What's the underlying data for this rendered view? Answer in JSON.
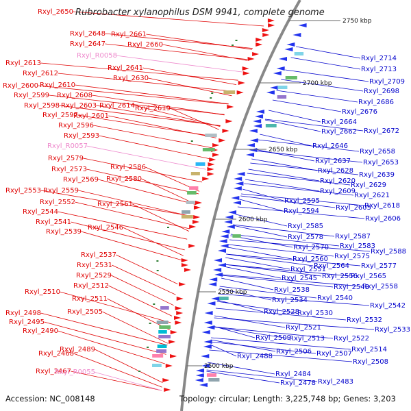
{
  "title": "Rubrobacter xylanophilus DSM 9941, complete genome",
  "accession": "Accession: NC_008148",
  "topology": "Topology: circular; Length: 3,225,748 bp; Genes: 3,203",
  "scale_labels": [
    "2750 kbp",
    "2700 kbp",
    "2650 kbp",
    "2600 kbp",
    "2550 kbp",
    "2500 kbp"
  ],
  "left_labels": [
    {
      "text": "Rxyl_2650",
      "type": "gene"
    },
    {
      "text": "Rxyl_2648",
      "type": "gene"
    },
    {
      "text": "Rxyl_2661",
      "type": "gene"
    },
    {
      "text": "Rxyl_2647",
      "type": "gene"
    },
    {
      "text": "Rxyl_2660",
      "type": "gene"
    },
    {
      "text": "Rxyl_R0058",
      "type": "rna"
    },
    {
      "text": "Rxyl_2641",
      "type": "gene"
    },
    {
      "text": "Rxyl_2613",
      "type": "gene"
    },
    {
      "text": "Rxyl_2630",
      "type": "gene"
    },
    {
      "text": "Rxyl_2612",
      "type": "gene"
    },
    {
      "text": "Rxyl_2600",
      "type": "gene"
    },
    {
      "text": "Rxyl_2610",
      "type": "gene"
    },
    {
      "text": "Rxyl_2599",
      "type": "gene"
    },
    {
      "text": "Rxyl_2608",
      "type": "gene"
    },
    {
      "text": "Rxyl_2598",
      "type": "gene"
    },
    {
      "text": "Rxyl_2603",
      "type": "gene"
    },
    {
      "text": "Rxyl_2614",
      "type": "gene"
    },
    {
      "text": "Rxyl_2619",
      "type": "gene"
    },
    {
      "text": "Rxyl_2597",
      "type": "gene"
    },
    {
      "text": "Rxyl_2601",
      "type": "gene"
    },
    {
      "text": "Rxyl_2596",
      "type": "gene"
    },
    {
      "text": "Rxyl_2593",
      "type": "gene"
    },
    {
      "text": "Rxyl_R0057",
      "type": "rna"
    },
    {
      "text": "Rxyl_2579",
      "type": "gene"
    },
    {
      "text": "Rxyl_2586",
      "type": "gene"
    },
    {
      "text": "Rxyl_2573",
      "type": "gene"
    },
    {
      "text": "Rxyl_2569",
      "type": "gene"
    },
    {
      "text": "Rxyl_2580",
      "type": "gene"
    },
    {
      "text": "Rxyl_2553",
      "type": "gene"
    },
    {
      "text": "Rxyl_2559",
      "type": "gene"
    },
    {
      "text": "Rxyl_2552",
      "type": "gene"
    },
    {
      "text": "Rxyl_2561",
      "type": "gene"
    },
    {
      "text": "Rxyl_2544",
      "type": "gene"
    },
    {
      "text": "Rxyl_2541",
      "type": "gene"
    },
    {
      "text": "Rxyl_2546",
      "type": "gene"
    },
    {
      "text": "Rxyl_2539",
      "type": "gene"
    },
    {
      "text": "Rxyl_2537",
      "type": "gene"
    },
    {
      "text": "Rxyl_2531",
      "type": "gene"
    },
    {
      "text": "Rxyl_2529",
      "type": "gene"
    },
    {
      "text": "Rxyl_2512",
      "type": "gene"
    },
    {
      "text": "Rxyl_2510",
      "type": "gene"
    },
    {
      "text": "Rxyl_2511",
      "type": "gene"
    },
    {
      "text": "Rxyl_2505",
      "type": "gene"
    },
    {
      "text": "Rxyl_2498",
      "type": "gene"
    },
    {
      "text": "Rxyl_2495",
      "type": "gene"
    },
    {
      "text": "Rxyl_2490",
      "type": "gene"
    },
    {
      "text": "Rxyl_2489",
      "type": "gene"
    },
    {
      "text": "Rxyl_2468",
      "type": "gene"
    },
    {
      "text": "Rxyl_2467",
      "type": "gene"
    },
    {
      "text": "Rxyl_R0055",
      "type": "rna"
    }
  ],
  "right_labels": [
    "Rxyl_2714",
    "Rxyl_2713",
    "Rxyl_2709",
    "Rxyl_2698",
    "Rxyl_2686",
    "Rxyl_2676",
    "Rxyl_2664",
    "Rxyl_2662",
    "Rxyl_2672",
    "Rxyl_2646",
    "Rxyl_2658",
    "Rxyl_2637",
    "Rxyl_2653",
    "Rxyl_2628",
    "Rxyl_2639",
    "Rxyl_2620",
    "Rxyl_2629",
    "Rxyl_2609",
    "Rxyl_2621",
    "Rxyl_2595",
    "Rxyl_2605",
    "Rxyl_2618",
    "Rxyl_2594",
    "Rxyl_2606",
    "Rxyl_2585",
    "Rxyl_2578",
    "Rxyl_2587",
    "Rxyl_2570",
    "Rxyl_2583",
    "Rxyl_2575",
    "Rxyl_2588",
    "Rxyl_2560",
    "Rxyl_2564",
    "Rxyl_2577",
    "Rxyl_2551",
    "Rxyl_2556",
    "Rxyl_2565",
    "Rxyl_2545",
    "Rxyl_2548",
    "Rxyl_2558",
    "Rxyl_2538",
    "Rxyl_2540",
    "Rxyl_2534",
    "Rxyl_2542",
    "Rxyl_2528",
    "Rxyl_2530",
    "Rxyl_2532",
    "Rxyl_2521",
    "Rxyl_2533",
    "Rxyl_2509",
    "Rxyl_2513",
    "Rxyl_2522",
    "Rxyl_2506",
    "Rxyl_2507",
    "Rxyl_2514",
    "Rxyl_2488",
    "Rxyl_2508",
    "Rxyl_2484",
    "Rxyl_2478",
    "Rxyl_2483"
  ]
}
